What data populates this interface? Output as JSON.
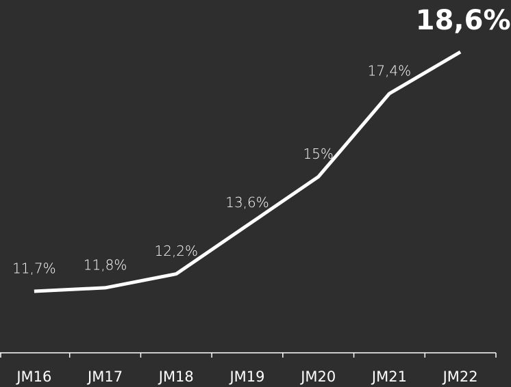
{
  "chart_data": {
    "type": "line",
    "categories": [
      "JM16",
      "JM17",
      "JM18",
      "JM19",
      "JM20",
      "JM21",
      "JM22"
    ],
    "values": [
      11.7,
      11.8,
      12.2,
      13.6,
      15,
      17.4,
      18.6
    ],
    "value_labels": [
      "11,7%",
      "11,8%",
      "12,2%",
      "13,6%",
      "15%",
      "17,4%",
      "18,6%"
    ],
    "color": "#ffffff"
  }
}
